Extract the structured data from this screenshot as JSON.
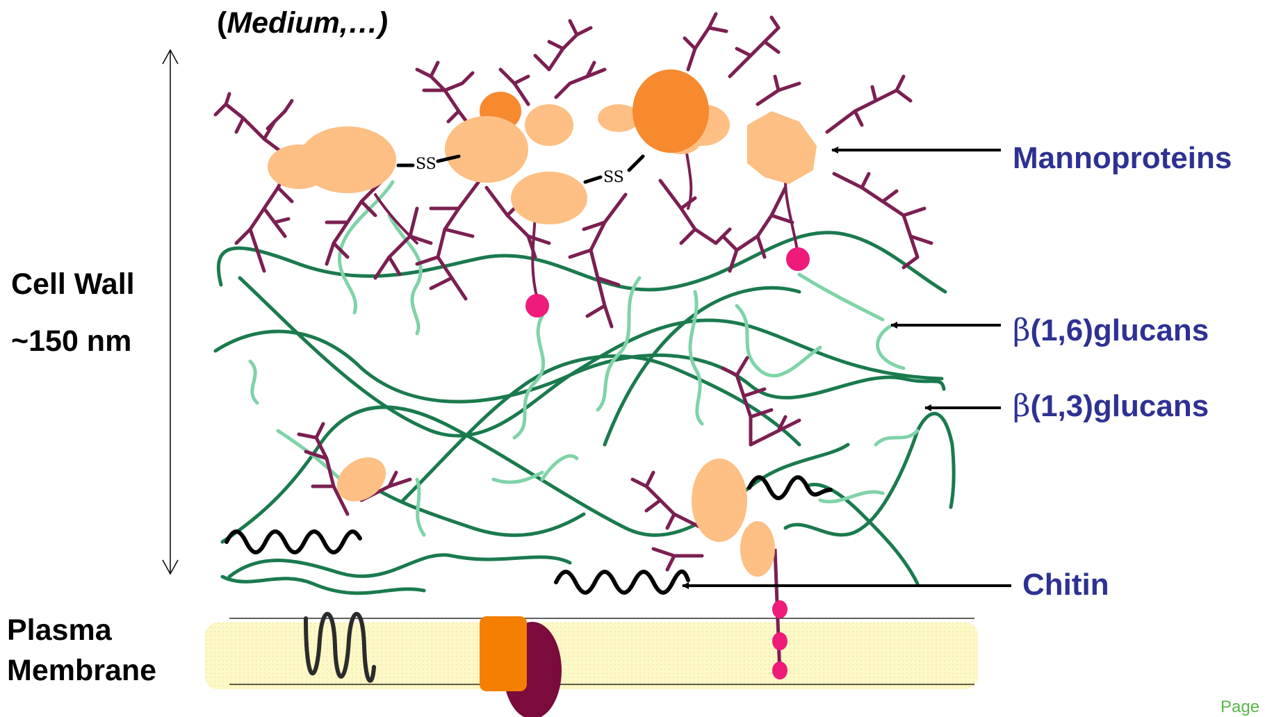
{
  "header": {
    "medium_open": "(",
    "medium_word": "Medium,…)"
  },
  "left_labels": {
    "cell_wall": "Cell Wall",
    "thickness": "~150 nm",
    "plasma_line1": "Plasma",
    "plasma_line2": "Membrane"
  },
  "right_labels": {
    "mannoproteins": "Mannoproteins",
    "b16_symbol": "β",
    "b16_text": "(1,6)glucans",
    "b13_symbol": "β",
    "b13_text": "(1,3)glucans",
    "chitin": "Chitin"
  },
  "bond_labels": {
    "ss1": "SS",
    "ss2": "SS"
  },
  "footer": {
    "page": "Page"
  },
  "colors": {
    "mannan": "#7b1f52",
    "protein_light": "#fdbf83",
    "protein_dark": "#f7892f",
    "glucan13": "#1a7a4e",
    "glucan16": "#7fd3a8",
    "chitin": "#000000",
    "gpi_anchor": "#ee1b7a",
    "membrane": "#fdf8c7",
    "membrane_protein_orange": "#f47f00",
    "membrane_protein_maroon": "#7a0b3c",
    "label_blue": "#2e3192",
    "page_green": "#5ab748"
  }
}
